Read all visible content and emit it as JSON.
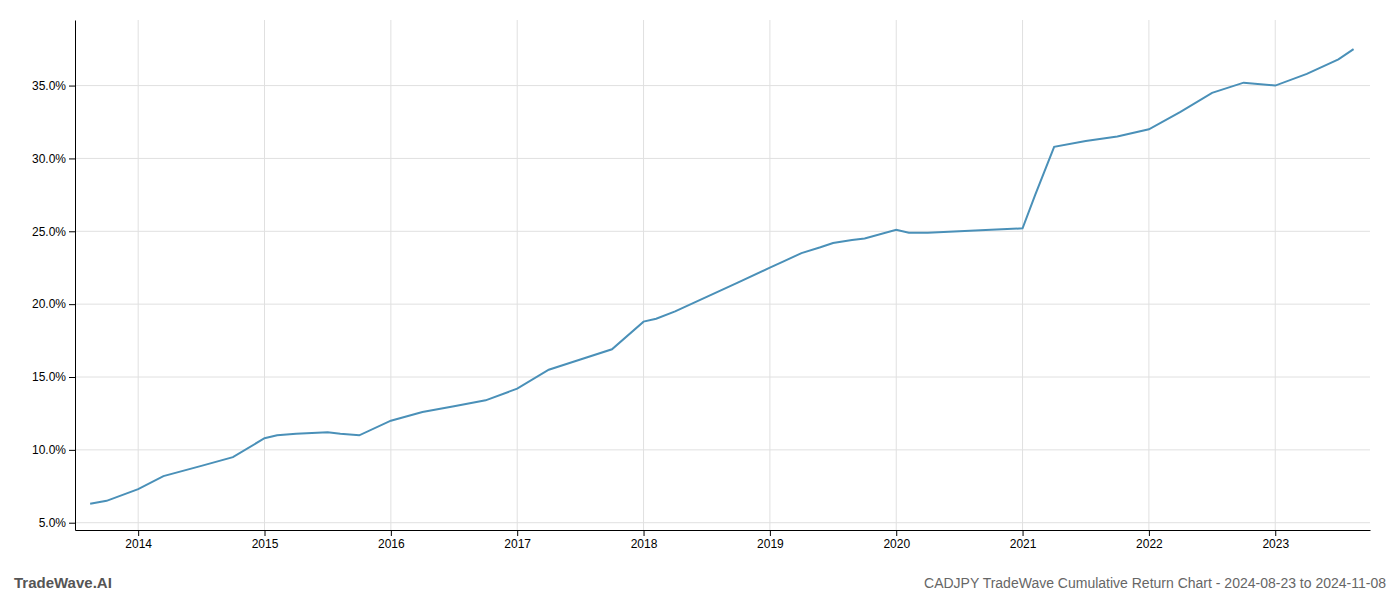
{
  "chart_data": {
    "type": "line",
    "title": "CADJPY TradeWave Cumulative Return Chart - 2024-08-23 to 2024-11-08",
    "annotations": [
      "TradeWave.AI"
    ],
    "color": "#4a90b8",
    "x": [
      2013.62,
      2013.75,
      2014.0,
      2014.2,
      2014.5,
      2014.75,
      2015.0,
      2015.1,
      2015.25,
      2015.5,
      2015.6,
      2015.75,
      2016.0,
      2016.25,
      2016.5,
      2016.75,
      2017.0,
      2017.25,
      2017.5,
      2017.75,
      2018.0,
      2018.1,
      2018.25,
      2018.5,
      2018.75,
      2019.0,
      2019.1,
      2019.25,
      2019.4,
      2019.5,
      2019.65,
      2019.75,
      2020.0,
      2020.1,
      2020.25,
      2020.5,
      2020.75,
      2021.0,
      2021.1,
      2021.25,
      2021.5,
      2021.75,
      2022.0,
      2022.25,
      2022.5,
      2022.75,
      2023.0,
      2023.25,
      2023.5,
      2023.62
    ],
    "values": [
      6.3,
      6.5,
      7.3,
      8.2,
      8.9,
      9.5,
      10.8,
      11.0,
      11.1,
      11.2,
      11.1,
      11.0,
      12.0,
      12.6,
      13.0,
      13.4,
      14.2,
      15.5,
      16.2,
      16.9,
      18.8,
      19.0,
      19.5,
      20.5,
      21.5,
      22.5,
      22.9,
      23.5,
      23.9,
      24.2,
      24.4,
      24.5,
      25.1,
      24.9,
      24.9,
      25.0,
      25.1,
      25.2,
      27.5,
      30.8,
      31.2,
      31.5,
      32.0,
      33.2,
      34.5,
      35.2,
      35.0,
      35.8,
      36.8,
      37.5
    ],
    "xlim": [
      2013.5,
      2023.75
    ],
    "ylim": [
      4.5,
      39.5
    ],
    "xticks": [
      2014,
      2015,
      2016,
      2017,
      2018,
      2019,
      2020,
      2021,
      2022,
      2023
    ],
    "yticks": [
      {
        "value": 5.0,
        "label": "5.0%"
      },
      {
        "value": 10.0,
        "label": "10.0%"
      },
      {
        "value": 15.0,
        "label": "15.0%"
      },
      {
        "value": 20.0,
        "label": "20.0%"
      },
      {
        "value": 25.0,
        "label": "25.0%"
      },
      {
        "value": 30.0,
        "label": "30.0%"
      },
      {
        "value": 35.0,
        "label": "35.0%"
      }
    ],
    "grid": true
  }
}
